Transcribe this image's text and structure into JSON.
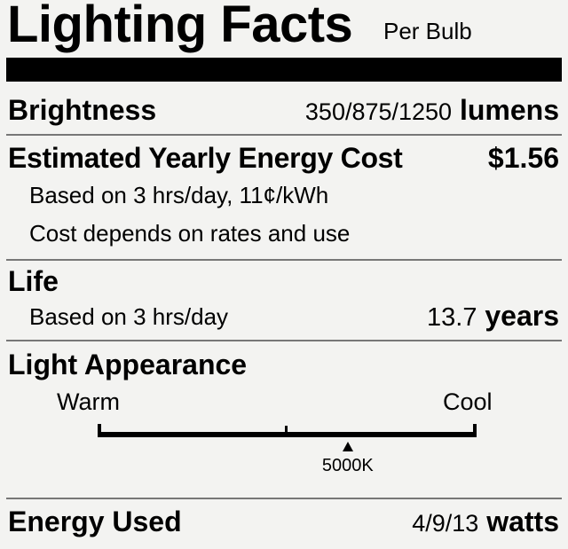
{
  "header": {
    "title": "Lighting Facts",
    "subtitle": "Per Bulb"
  },
  "brightness": {
    "label": "Brightness",
    "value": "350/875/1250",
    "unit": "lumens"
  },
  "energy_cost": {
    "label": "Estimated Yearly Energy Cost",
    "value": "$1.56",
    "note1": "Based on 3 hrs/day, 11¢/kWh",
    "note2": "Cost depends on rates and use"
  },
  "life": {
    "label": "Life",
    "note": "Based on 3 hrs/day",
    "value": "13.7",
    "unit": "years"
  },
  "light_appearance": {
    "label": "Light Appearance",
    "warm_label": "Warm",
    "cool_label": "Cool",
    "marker_label": "5000K",
    "marker_fraction": 0.66
  },
  "energy_used": {
    "label": "Energy Used",
    "value": "4/9/13",
    "unit": "watts"
  }
}
